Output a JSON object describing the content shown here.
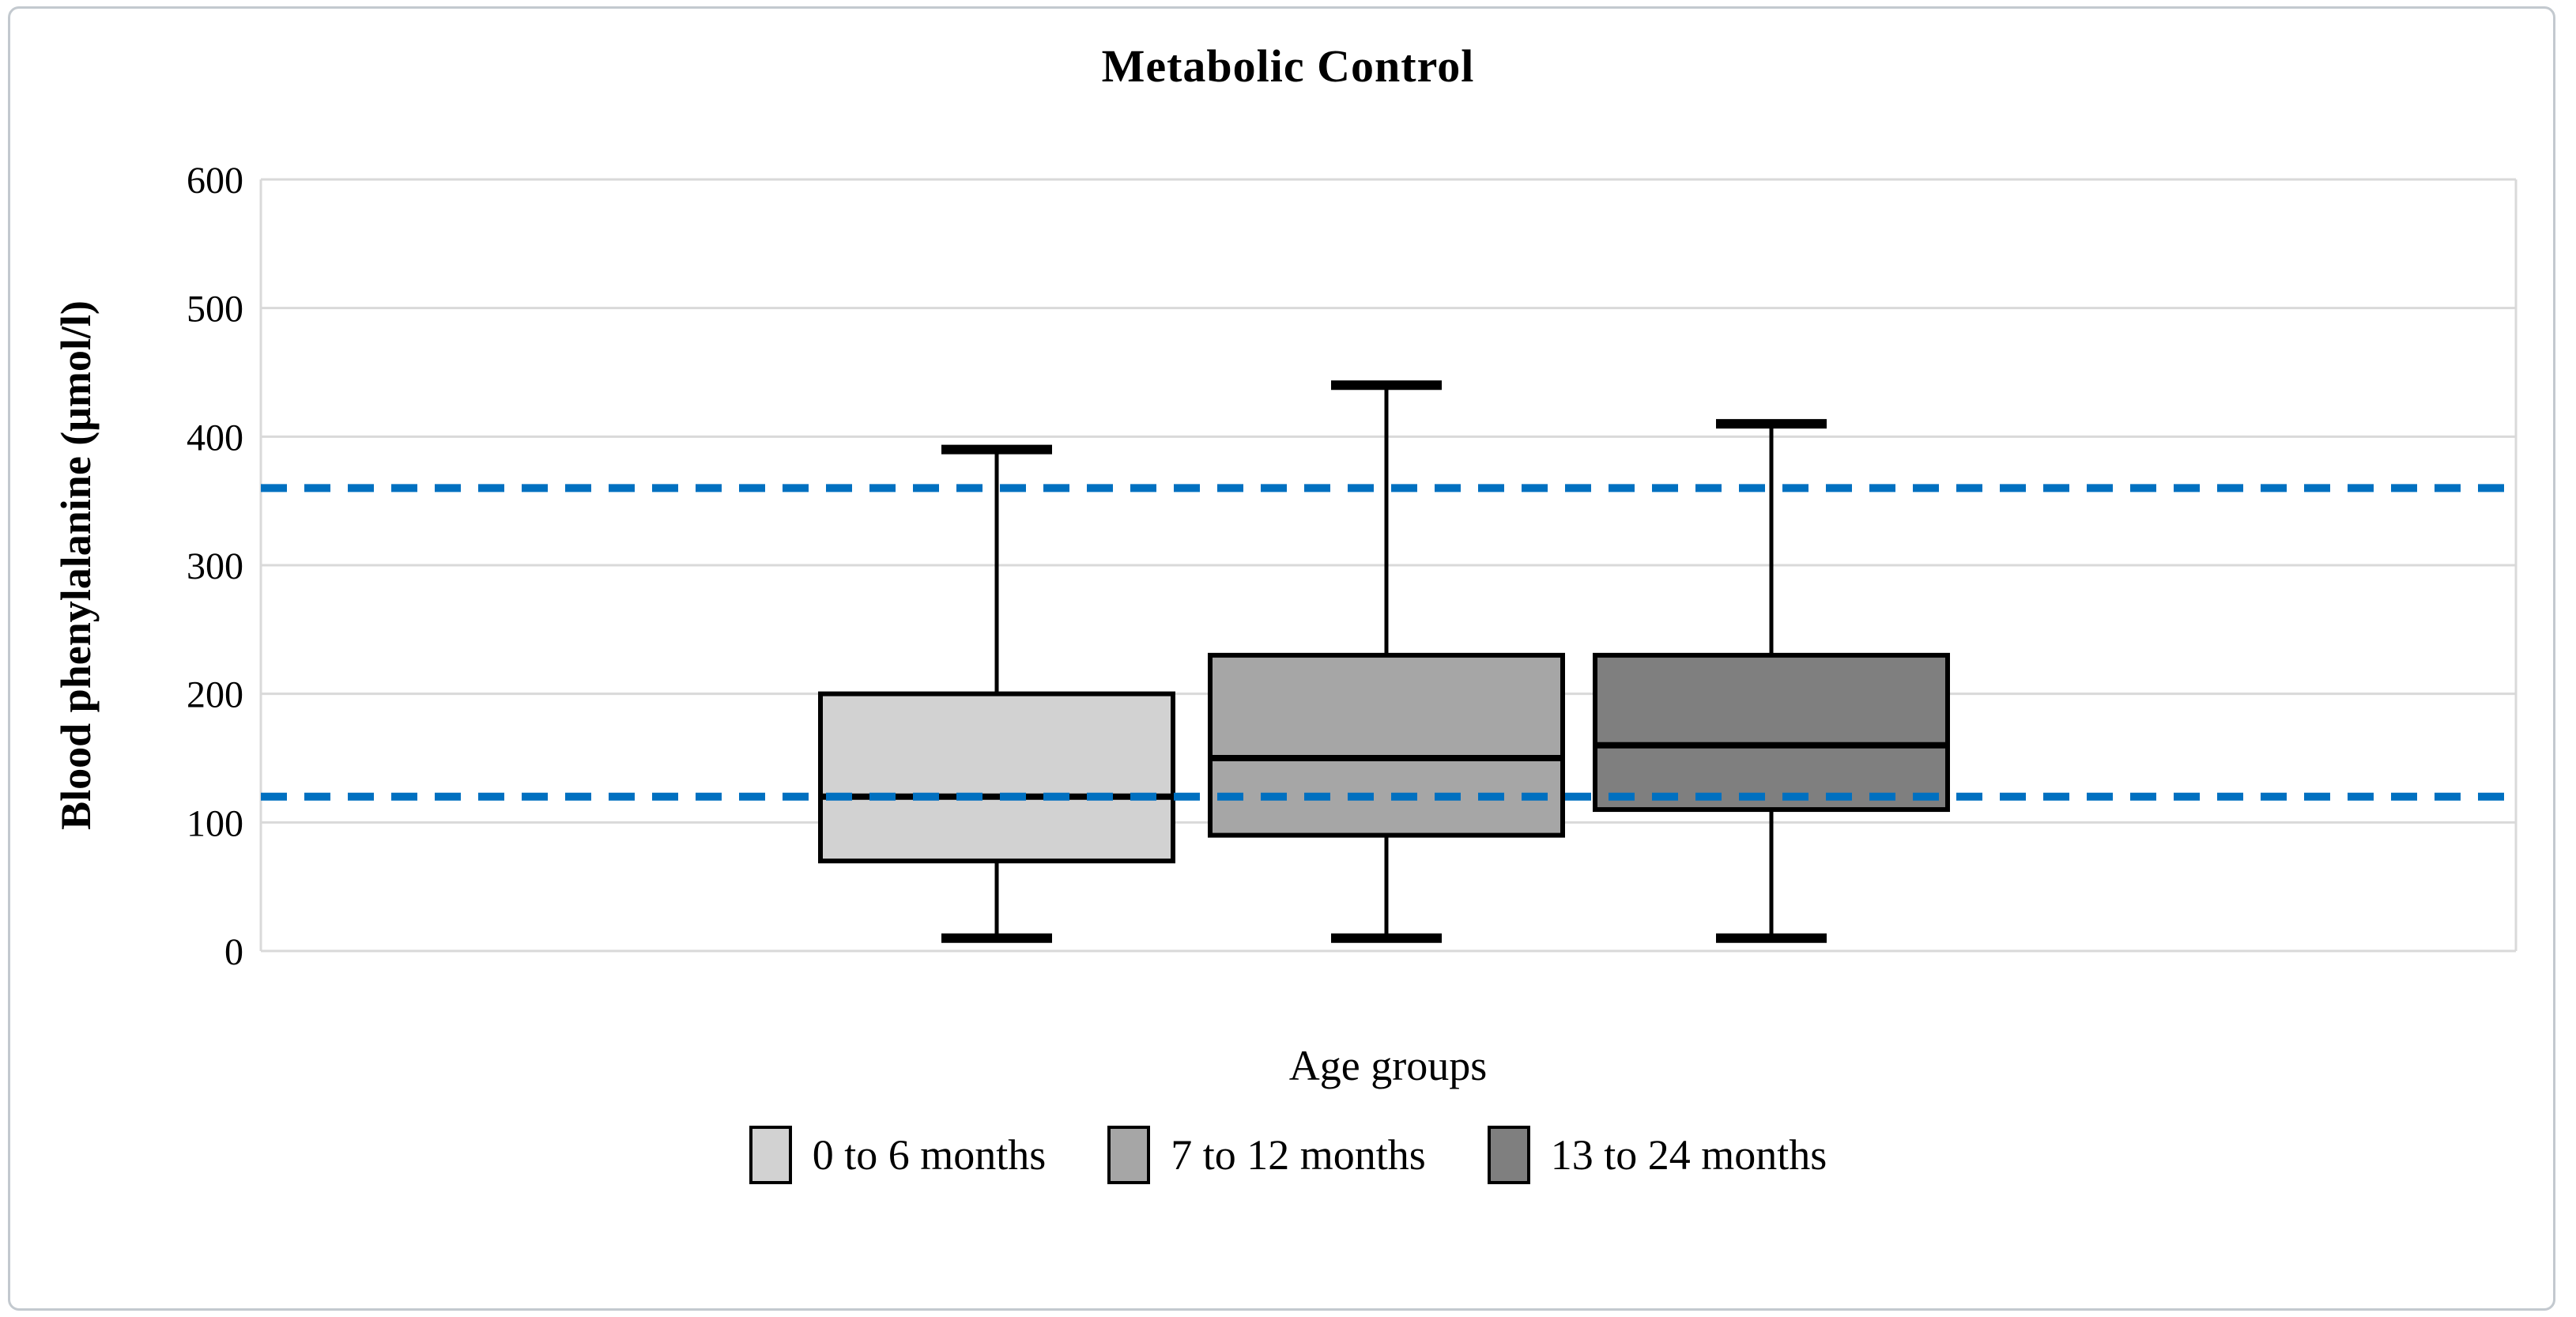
{
  "title": "Metabolic Control",
  "y_axis": {
    "label": "Blood phenylalanine (μmol/l)",
    "min": 0,
    "max": 600,
    "tick_step": 100,
    "ticks": [
      600,
      500,
      400,
      300,
      200,
      100,
      0
    ]
  },
  "x_axis": {
    "label": "Age groups"
  },
  "legend": {
    "items": [
      {
        "label": "0 to 6 months",
        "color": "#D2D2D2"
      },
      {
        "label": "7 to 12 months",
        "color": "#A6A6A6"
      },
      {
        "label": "13 to 24 months",
        "color": "#7F7F7F"
      }
    ]
  },
  "colors": {
    "reference_line": "#0070C0",
    "gridline": "#D9D9D9",
    "box_border": "#000000",
    "figure_border": "#C3C9CF"
  },
  "chart_data": {
    "type": "box",
    "title": "Metabolic Control",
    "xlabel": "Age groups",
    "ylabel": "Blood phenylalanine (μmol/l)",
    "ylim": [
      0,
      600
    ],
    "grid": true,
    "legend_position": "bottom",
    "series": [
      {
        "name": "0 to 6 months",
        "min": 10,
        "q1": 70,
        "median": 120,
        "q3": 200,
        "max": 390,
        "fill": "#D2D2D2"
      },
      {
        "name": "7 to 12 months",
        "min": 10,
        "q1": 90,
        "median": 150,
        "q3": 230,
        "max": 440,
        "fill": "#A6A6A6"
      },
      {
        "name": "13 to 24 months",
        "min": 10,
        "q1": 110,
        "median": 160,
        "q3": 230,
        "max": 410,
        "fill": "#7F7F7F"
      }
    ],
    "reference_lines": [
      {
        "value": 360,
        "style": "dashed",
        "color": "#0070C0"
      },
      {
        "value": 120,
        "style": "dashed",
        "color": "#0070C0"
      }
    ]
  }
}
